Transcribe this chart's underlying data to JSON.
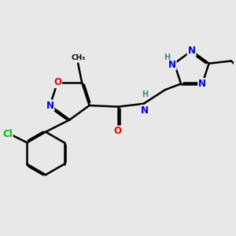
{
  "background_color": "#e8e8e8",
  "fig_size": [
    3.0,
    3.0
  ],
  "dpi": 100,
  "atom_colors": {
    "C": "#000000",
    "N": "#0000dd",
    "O": "#ee0000",
    "Cl": "#00bb00",
    "H": "#448888"
  },
  "bond_color": "#000000",
  "bond_width": 1.8,
  "font_size_atoms": 8.5,
  "font_size_small": 7.0,
  "font_size_label": 7.5
}
